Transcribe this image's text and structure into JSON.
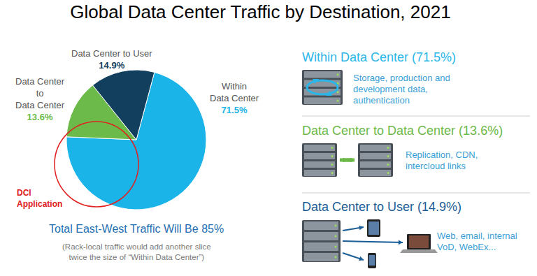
{
  "chart_data": {
    "type": "pie",
    "title": "Global Data Center Traffic by Destination, 2021",
    "categories": [
      "Within Data Center",
      "Data Center to Data Center",
      "Data Center to User"
    ],
    "values": [
      71.5,
      13.6,
      14.9
    ],
    "value_labels": [
      "71.5%",
      "13.6%",
      "14.9%"
    ],
    "colors": [
      "#1ab4e8",
      "#6cbb4a",
      "#133f5f"
    ],
    "data_labels": true,
    "annotations": [
      {
        "text": "DCI Application",
        "color": "#e02020"
      },
      {
        "text": "Total East-West Traffic Will Be 85%",
        "color": "#1f6fb2"
      },
      {
        "text": "(Rack-local traffic would add another slice twice the size of “Within Data Center”)",
        "color": "#7a7a7a"
      }
    ]
  },
  "panel": {
    "items": [
      {
        "heading": "Within Data Center (71.5%)",
        "description": "Storage, production and development data, authentication",
        "color": "#29b6e8"
      },
      {
        "heading": "Data Center to Data Center (13.6%)",
        "description": "Replication, CDN, intercloud links",
        "color": "#6cb947"
      },
      {
        "heading": "Data Center to User (14.9%)",
        "description": "Web, email, internal VoD, WebEx...",
        "color": "#1a5d96"
      }
    ]
  }
}
